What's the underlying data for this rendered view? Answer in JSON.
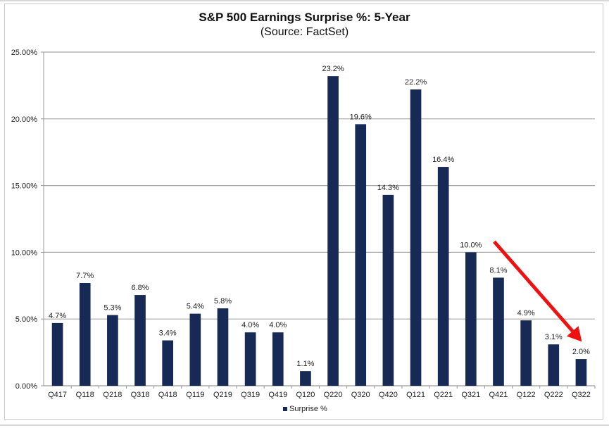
{
  "chart_data": {
    "type": "bar",
    "title": "S&P 500 Earnings Surprise %: 5-Year",
    "subtitle": "(Source: FactSet)",
    "xlabel": "",
    "ylabel": "",
    "ylim": [
      0,
      25
    ],
    "yticks": [
      0,
      5,
      10,
      15,
      20,
      25
    ],
    "ytick_labels": [
      "0.00%",
      "5.00%",
      "10.00%",
      "15.00%",
      "20.00%",
      "25.00%"
    ],
    "grid": true,
    "legend_position": "bottom",
    "categories": [
      "Q417",
      "Q118",
      "Q218",
      "Q318",
      "Q418",
      "Q119",
      "Q219",
      "Q319",
      "Q419",
      "Q120",
      "Q220",
      "Q320",
      "Q420",
      "Q121",
      "Q221",
      "Q321",
      "Q421",
      "Q122",
      "Q222",
      "Q322"
    ],
    "series": [
      {
        "name": "Surprise %",
        "color": "#172a56",
        "values": [
          4.7,
          7.7,
          5.3,
          6.8,
          3.4,
          5.4,
          5.8,
          4.0,
          4.0,
          1.1,
          23.2,
          19.6,
          14.3,
          22.2,
          16.4,
          10.0,
          8.1,
          4.9,
          3.1,
          2.0
        ],
        "data_labels": [
          "4.7%",
          "7.7%",
          "5.3%",
          "6.8%",
          "3.4%",
          "5.4%",
          "5.8%",
          "4.0%",
          "4.0%",
          "1.1%",
          "23.2%",
          "19.6%",
          "14.3%",
          "22.2%",
          "16.4%",
          "10.0%",
          "8.1%",
          "4.9%",
          "3.1%",
          "2.0%"
        ]
      }
    ],
    "annotations": [
      {
        "type": "arrow",
        "color": "#ee1111",
        "from_category": "Q421",
        "from_value": 10.8,
        "to_category": "Q322",
        "to_value": 3.3
      }
    ]
  }
}
